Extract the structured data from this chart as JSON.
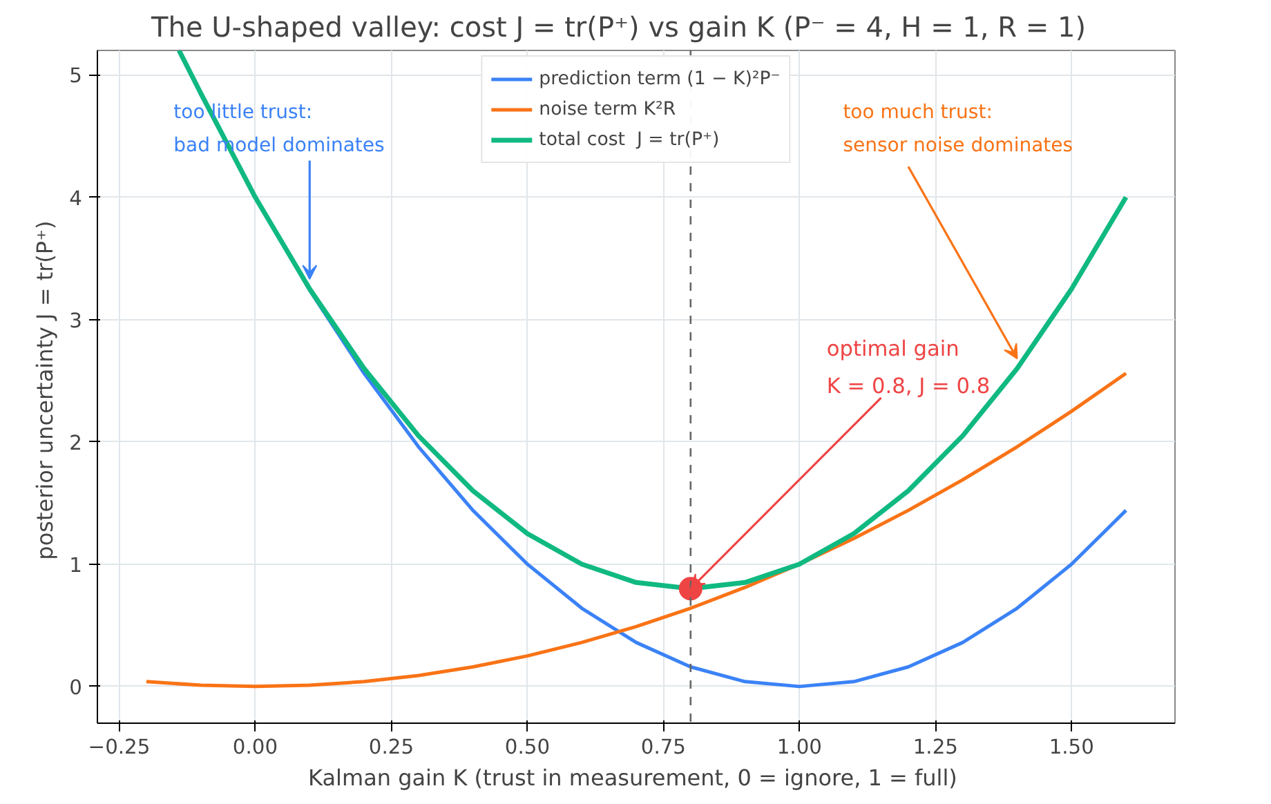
{
  "chart_data": {
    "type": "line",
    "title": "The U-shaped valley: cost J = tr(P⁺) vs gain K   (P⁻ = 4,  H = 1,  R = 1)",
    "xlabel": "Kalman gain K  (trust in measurement, 0 = ignore, 1 = full)",
    "ylabel": "posterior uncertainty  J = tr(P⁺)",
    "xlim": [
      -0.29,
      1.69
    ],
    "xticks": [
      {
        "value": -0.25,
        "label": "−0.25"
      },
      {
        "value": 0,
        "label": "0.00"
      },
      0.25,
      {
        "value": 0.5,
        "label": "0.50"
      },
      0.75,
      {
        "value": 1,
        "label": "1.00"
      },
      1.25,
      {
        "value": 1.5,
        "label": "1.50"
      }
    ],
    "ylim": [
      -0.3,
      5.2
    ],
    "yticks": [
      0,
      1,
      2,
      3,
      4,
      5
    ],
    "grid": true,
    "legend": "top",
    "line_style": "solid",
    "series": [
      {
        "name": "prediction term (1 − K)²P⁻",
        "color": "#3b82f6",
        "x": [
          -0.14,
          -0.1,
          0.0,
          0.1,
          0.2,
          0.3,
          0.4,
          0.5,
          0.6,
          0.7,
          0.8,
          0.9,
          1.0,
          1.1,
          1.2,
          1.3,
          1.4,
          1.5,
          1.6
        ],
        "values": [
          5.2,
          4.84,
          4.0,
          3.24,
          2.56,
          1.96,
          1.44,
          1.0,
          0.64,
          0.36,
          0.16,
          0.04,
          0.0,
          0.04,
          0.16,
          0.36,
          0.64,
          1.0,
          1.44
        ]
      },
      {
        "name": "noise term K²R",
        "color": "#f97316",
        "x": [
          -0.2,
          -0.1,
          0.0,
          0.1,
          0.2,
          0.3,
          0.4,
          0.5,
          0.6,
          0.7,
          0.8,
          0.9,
          1.0,
          1.1,
          1.2,
          1.3,
          1.4,
          1.5,
          1.6
        ],
        "values": [
          0.04,
          0.01,
          0.0,
          0.01,
          0.04,
          0.09,
          0.16,
          0.25,
          0.36,
          0.49,
          0.64,
          0.81,
          1.0,
          1.21,
          1.44,
          1.69,
          1.96,
          2.25,
          2.56
        ]
      },
      {
        "name": "total cost  J = tr(P⁺)",
        "color": "#10b981",
        "x": [
          -0.14,
          -0.1,
          0.0,
          0.1,
          0.2,
          0.3,
          0.4,
          0.5,
          0.6,
          0.7,
          0.8,
          0.9,
          1.0,
          1.1,
          1.2,
          1.3,
          1.4,
          1.5,
          1.6
        ],
        "values": [
          5.2,
          4.85,
          4.0,
          3.25,
          2.6,
          2.05,
          1.6,
          1.25,
          1.0,
          0.85,
          0.8,
          0.85,
          1.0,
          1.25,
          1.6,
          2.05,
          2.6,
          3.25,
          4.0
        ]
      },
      {
        "type": "scatter",
        "marker": "circle",
        "color": "#ef4444",
        "x": [
          0.8
        ],
        "values": [
          0.8
        ]
      }
    ],
    "ref_lines": [
      {
        "axis": "x",
        "value": 0.8,
        "color": "#666666",
        "line_style": "dashed"
      }
    ],
    "annotations": [
      {
        "text": "too little trust:\nbad model dominates",
        "x": 0.1,
        "y": 3.25
      },
      {
        "text": "too much trust:\nsensor noise dominates",
        "x": 1.4,
        "y": 2.6
      },
      {
        "text": "optimal gain\nK = 0.8,  J = 0.8",
        "x": 0.8,
        "y": 0.8
      }
    ]
  }
}
